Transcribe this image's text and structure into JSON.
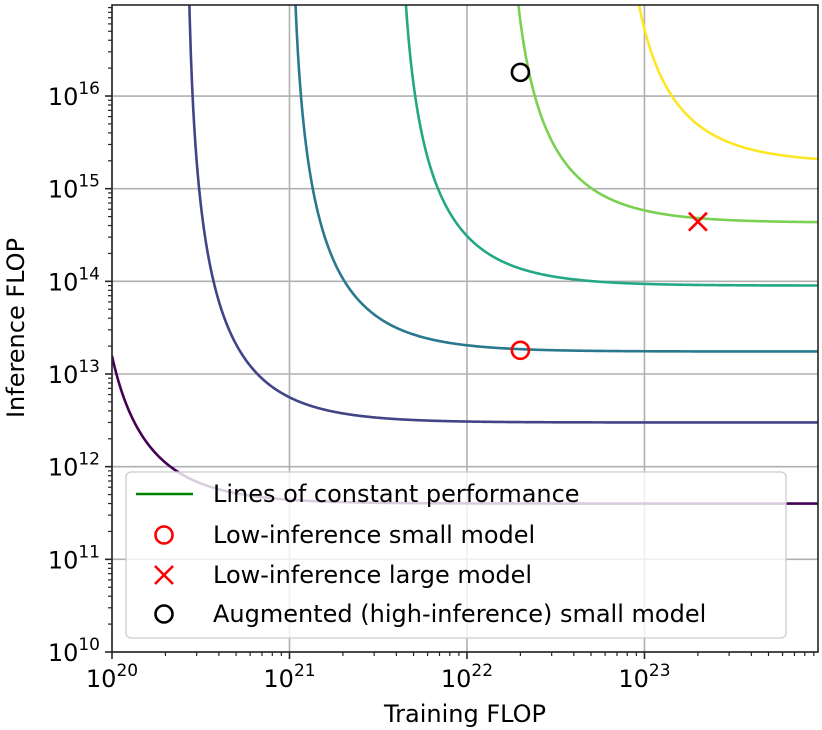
{
  "chart_data": {
    "type": "line",
    "title": "",
    "xlabel": "Training FLOP",
    "ylabel": "Inference FLOP",
    "xscale": "log",
    "yscale": "log",
    "xlim": [
      1e+20,
      9.5e+23
    ],
    "ylim": [
      10000000000.0,
      9.6e+16
    ],
    "grid": true,
    "x_ticks": [
      {
        "value": 1e+20,
        "base": "10",
        "exp": "20"
      },
      {
        "value": 1e+21,
        "base": "10",
        "exp": "21"
      },
      {
        "value": 1e+22,
        "base": "10",
        "exp": "22"
      },
      {
        "value": 1e+23,
        "base": "10",
        "exp": "23"
      }
    ],
    "y_ticks": [
      {
        "value": 10000000000.0,
        "base": "10",
        "exp": "10"
      },
      {
        "value": 100000000000.0,
        "base": "10",
        "exp": "11"
      },
      {
        "value": 1000000000000.0,
        "base": "10",
        "exp": "12"
      },
      {
        "value": 10000000000000.0,
        "base": "10",
        "exp": "13"
      },
      {
        "value": 100000000000000.0,
        "base": "10",
        "exp": "14"
      },
      {
        "value": 1000000000000000.0,
        "base": "10",
        "exp": "15"
      },
      {
        "value": 1e+16,
        "base": "10",
        "exp": "16"
      }
    ],
    "series": [
      {
        "name": "constant-performance-1",
        "color": "#440154",
        "min_training_flop": 7.1e+19,
        "min_inference_flop": 400000000000.0
      },
      {
        "name": "constant-performance-2",
        "color": "#414487",
        "min_training_flop": 2.6e+20,
        "min_inference_flop": 3000000000000.0
      },
      {
        "name": "constant-performance-3",
        "color": "#2a788e",
        "min_training_flop": 1e+21,
        "min_inference_flop": 17500000000000.0
      },
      {
        "name": "constant-performance-4",
        "color": "#22a884",
        "min_training_flop": 4e+21,
        "min_inference_flop": 90000000000000.0
      },
      {
        "name": "constant-performance-5",
        "color": "#7ad151",
        "min_training_flop": 1.6e+22,
        "min_inference_flop": 430000000000000.0
      },
      {
        "name": "constant-performance-6",
        "color": "#fde725",
        "min_training_flop": 6.8e+22,
        "min_inference_flop": 1900000000000000.0
      }
    ],
    "points": [
      {
        "name": "low-inference-small-model",
        "marker": "circle",
        "color": "#ff0000",
        "x": 2e+22,
        "y": 18000000000000.0
      },
      {
        "name": "low-inference-large-model",
        "marker": "x",
        "color": "#ff0000",
        "x": 2e+23,
        "y": 440000000000000.0
      },
      {
        "name": "augmented-small-model",
        "marker": "circle",
        "color": "#000000",
        "x": 2e+22,
        "y": 1.8e+16
      }
    ],
    "legend": {
      "placement": "lower-right",
      "entries": [
        {
          "label": "Lines of constant performance",
          "marker": "line",
          "color": "#008000"
        },
        {
          "label": "Low-inference small model",
          "marker": "circle",
          "color": "#ff0000"
        },
        {
          "label": "Low-inference large model",
          "marker": "x",
          "color": "#ff0000"
        },
        {
          "label": "Augmented (high-inference) small model",
          "marker": "circle",
          "color": "#000000"
        }
      ]
    }
  }
}
